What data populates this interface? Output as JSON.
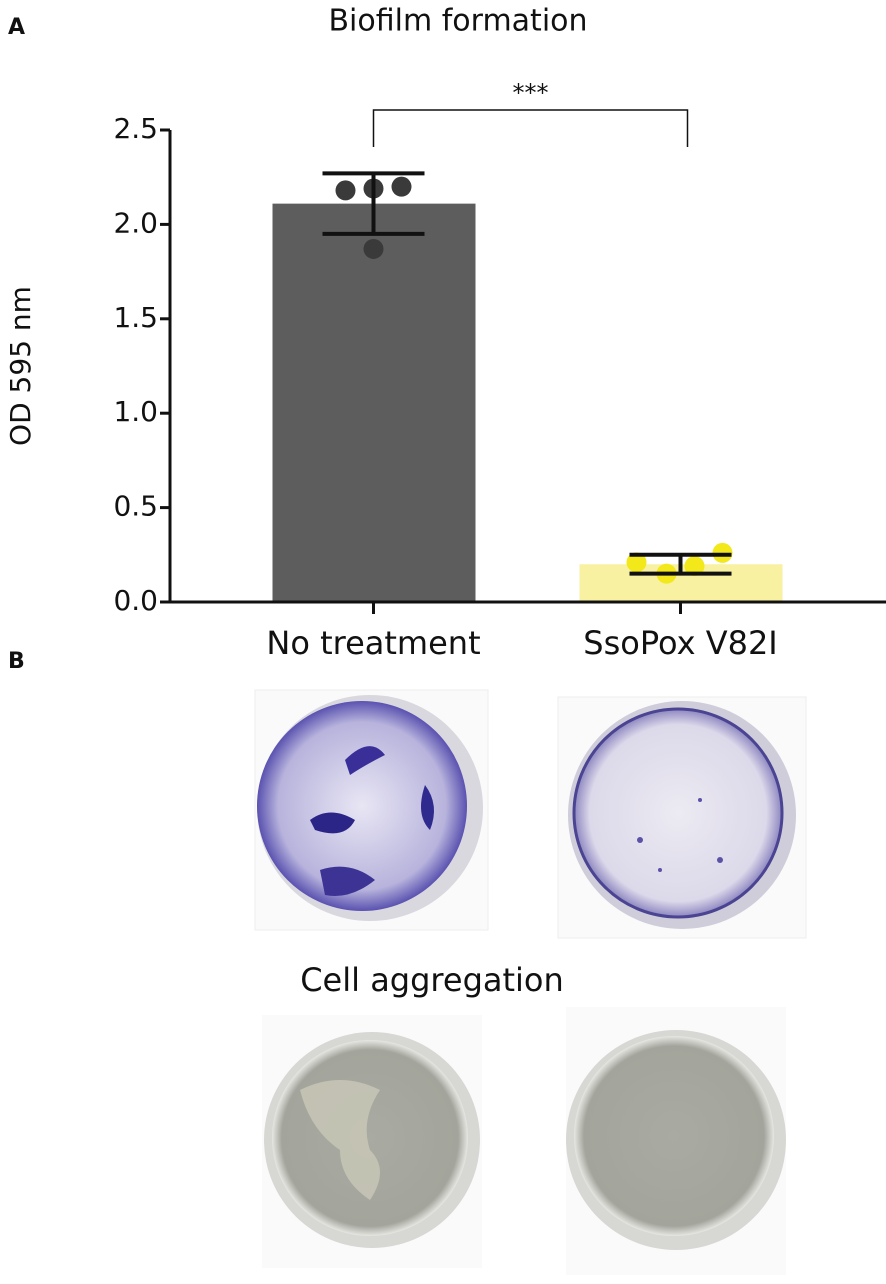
{
  "panels": {
    "a_label": "A",
    "b_label": "B",
    "b_caption": "Cell aggregation"
  },
  "chart_data": {
    "type": "bar",
    "title": "Biofilm formation",
    "y_label": "OD 595 nm",
    "categories": [
      "No treatment",
      "SsoPox V82I"
    ],
    "values": [
      2.11,
      0.2
    ],
    "errors": [
      0.16,
      0.05
    ],
    "points": [
      [
        2.18,
        2.19,
        2.2,
        1.87
      ],
      [
        0.21,
        0.15,
        0.19,
        0.26
      ]
    ],
    "colors": [
      "#5d5d5d",
      "#f7f1a1"
    ],
    "point_colors": [
      "#3a3a3a",
      "#f2e81a"
    ],
    "annotation": "***",
    "ylim": [
      0,
      2.5
    ],
    "yticks": [
      {
        "value": 0,
        "label": "0.0"
      },
      0.5,
      {
        "value": 1,
        "label": "1.0"
      },
      1.5,
      {
        "value": 2,
        "label": "2.0"
      },
      2.5
    ]
  }
}
